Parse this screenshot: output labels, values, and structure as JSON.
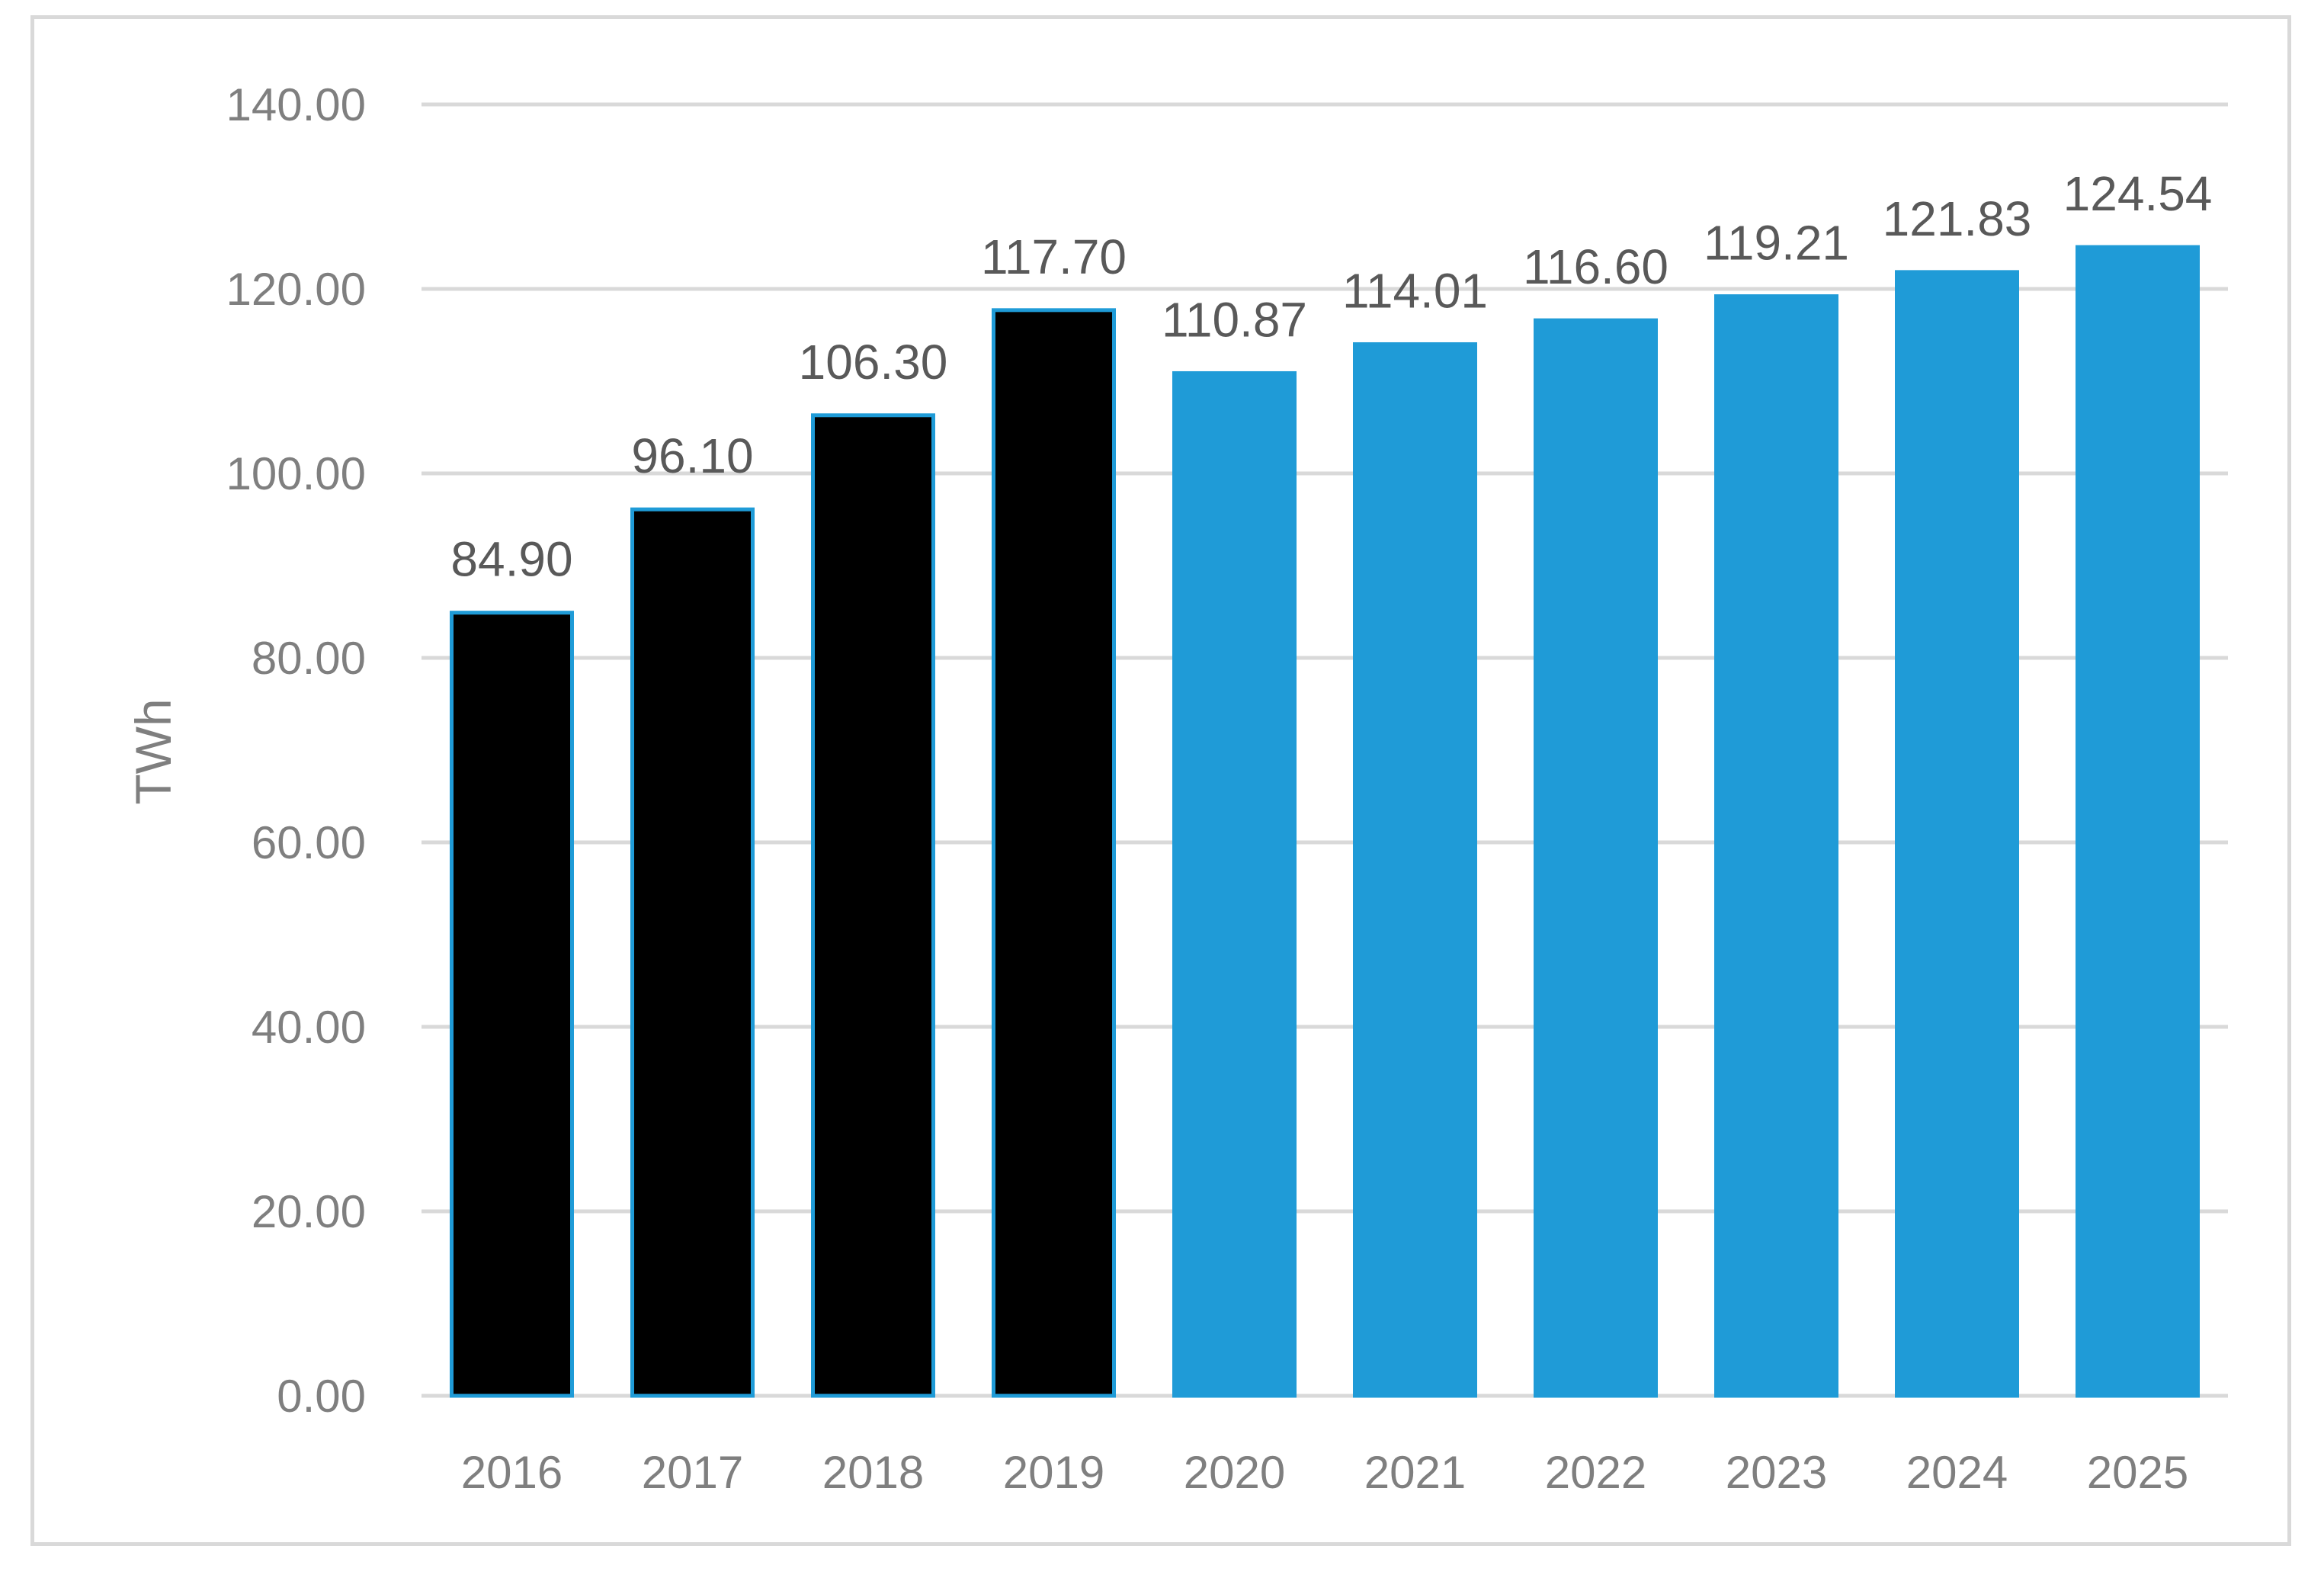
{
  "chart_data": {
    "type": "bar",
    "title": "",
    "xlabel": "",
    "ylabel": "TWh",
    "ylim": [
      0,
      140
    ],
    "yticks": [
      "0.00",
      "20.00",
      "40.00",
      "60.00",
      "80.00",
      "100.00",
      "120.00",
      "140.00"
    ],
    "grid": true,
    "categories": [
      "2016",
      "2017",
      "2018",
      "2019",
      "2020",
      "2021",
      "2022",
      "2023",
      "2024",
      "2025"
    ],
    "values": [
      84.9,
      96.1,
      106.3,
      117.7,
      110.87,
      114.01,
      116.6,
      119.21,
      121.83,
      124.54
    ],
    "data_labels": [
      "84.90",
      "96.10",
      "106.30",
      "117.70",
      "110.87",
      "114.01",
      "116.60",
      "119.21",
      "121.83",
      "124.54"
    ],
    "bar_fills": [
      "#000000",
      "#000000",
      "#000000",
      "#000000",
      "#1f9bd7",
      "#1f9bd7",
      "#1f9bd7",
      "#1f9bd7",
      "#1f9bd7",
      "#1f9bd7"
    ],
    "bar_outline_color": "#1f9bd7",
    "gridline_color": "#d9d9d9",
    "tick_label_color": "#7f7f7f",
    "data_label_color": "#595959"
  }
}
